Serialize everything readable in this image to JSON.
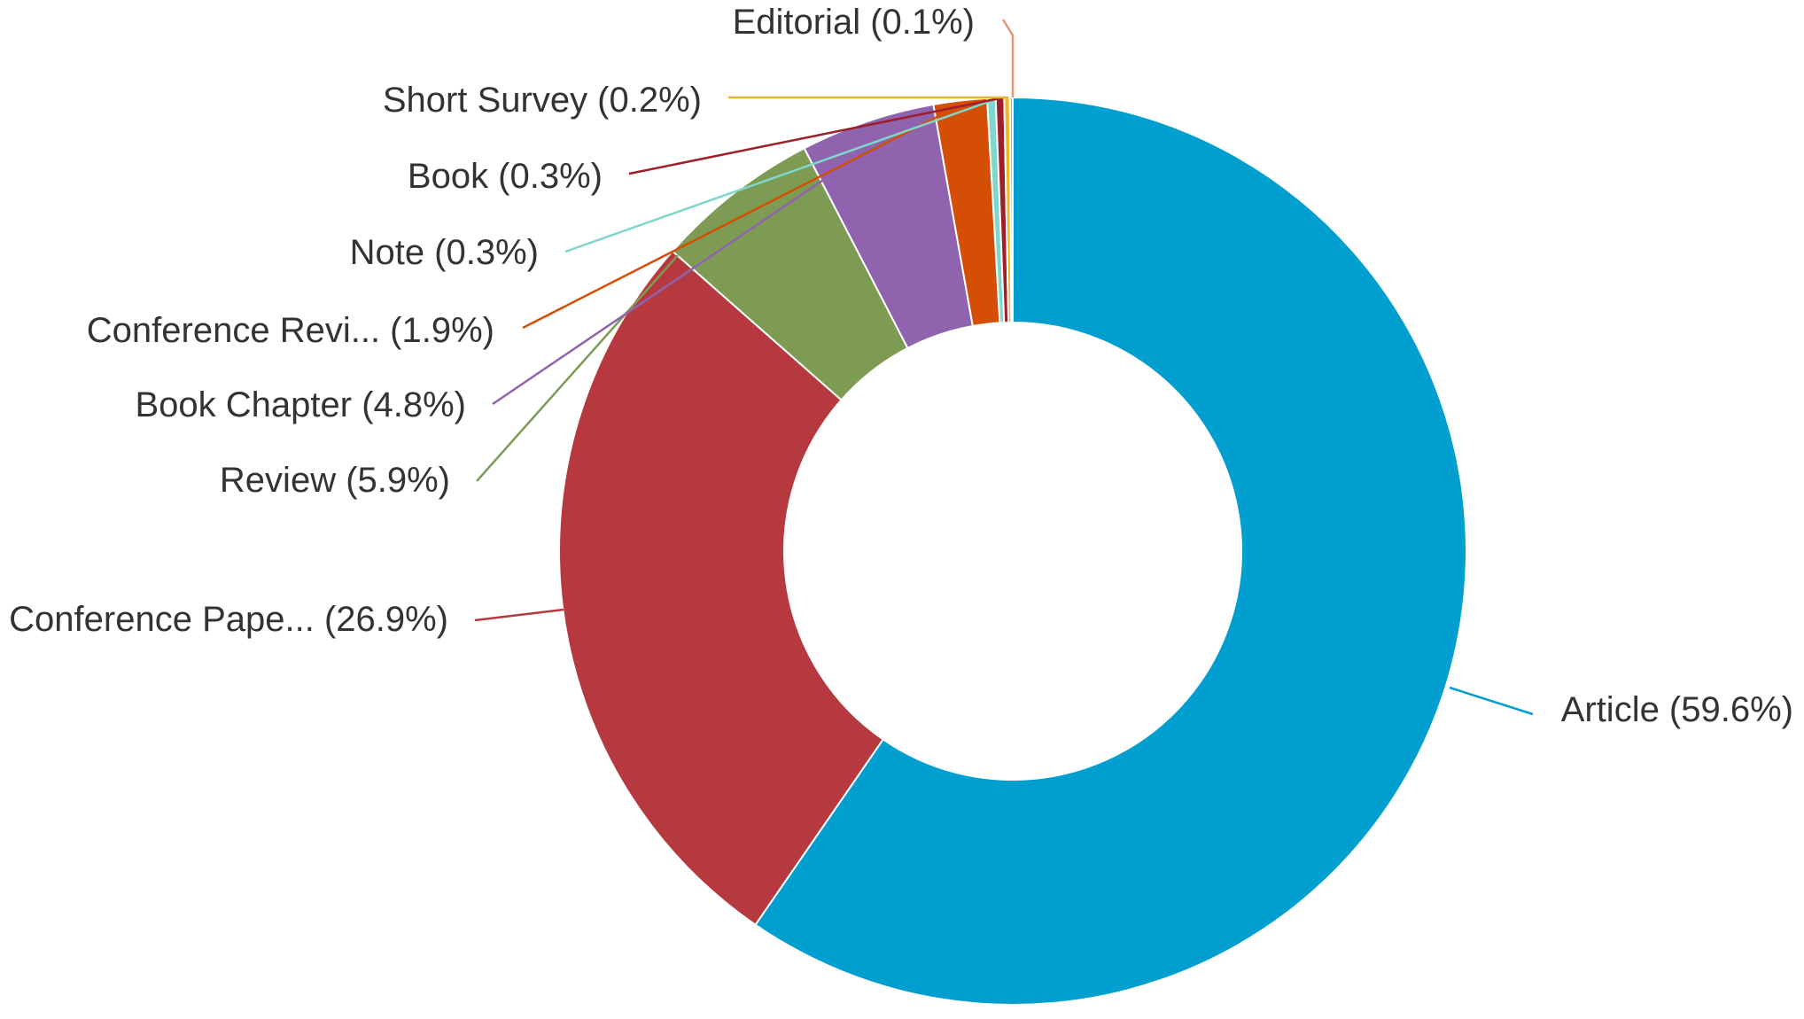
{
  "chart_data": {
    "type": "pie",
    "donut": true,
    "title": "",
    "legend": "none",
    "slices": [
      {
        "name": "Article",
        "percent": 59.6,
        "label": "Article (59.6%)",
        "color": "#009fd0"
      },
      {
        "name": "Conference Pape...",
        "percent": 26.9,
        "label": "Conference Pape... (26.9%)",
        "color": "#b6393f"
      },
      {
        "name": "Review",
        "percent": 5.9,
        "label": "Review (5.9%)",
        "color": "#7d9b53"
      },
      {
        "name": "Book Chapter",
        "percent": 4.8,
        "label": "Book Chapter (4.8%)",
        "color": "#8f63ad"
      },
      {
        "name": "Conference Revi...",
        "percent": 1.9,
        "label": "Conference Revi... (1.9%)",
        "color": "#d44f05"
      },
      {
        "name": "Note",
        "percent": 0.3,
        "label": "Note (0.3%)",
        "color": "#7fd6cc"
      },
      {
        "name": "Book",
        "percent": 0.3,
        "label": "Book (0.3%)",
        "color": "#9e1f2a"
      },
      {
        "name": "Short Survey",
        "percent": 0.2,
        "label": "Short Survey (0.2%)",
        "color": "#e9b829"
      },
      {
        "name": "Editorial",
        "percent": 0.1,
        "label": "Editorial (0.1%)",
        "color": "#e8937a"
      }
    ]
  }
}
